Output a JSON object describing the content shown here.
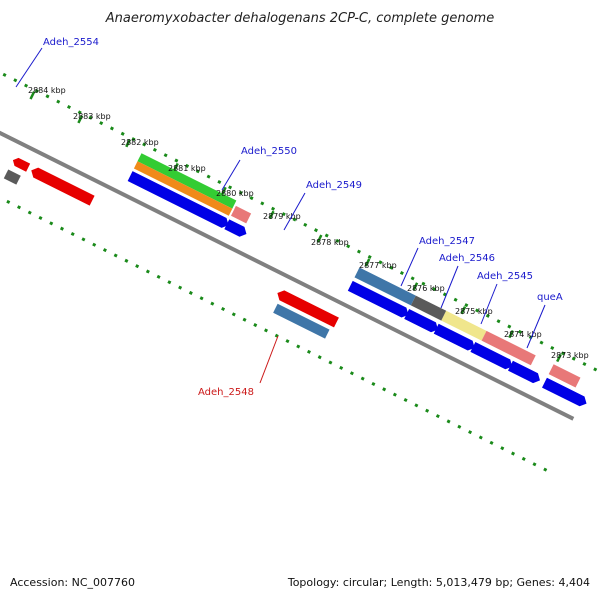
{
  "title": "Anaeromyxobacter dehalogenans 2CP-C, complete genome",
  "footer": {
    "accession": "Accession: NC_007760",
    "topology": "Topology: circular; Length: 5,013,479 bp; Genes: 4,404"
  },
  "colors": {
    "backbone": "#808080",
    "tick": "#1a8a1a",
    "gene_label_forward": "#1a1acc",
    "gene_label_reverse": "#cc1a1a",
    "blue": "#0000e6",
    "red": "#e60000",
    "green": "#33cc33",
    "orange": "#f08a1a",
    "gray": "#5a5a5a",
    "pink": "#e87878",
    "steelblue": "#3f76a8",
    "yellow": "#f0e68c"
  },
  "scale_ticks": [
    "2884 kbp",
    "2883 kbp",
    "2882 kbp",
    "2881 kbp",
    "2880 kbp",
    "2879 kbp",
    "2878 kbp",
    "2877 kbp",
    "2876 kbp",
    "2875 kbp",
    "2874 kbp",
    "2873 kbp"
  ],
  "gene_labels": [
    "Adeh_2554",
    "Adeh_2550",
    "Adeh_2549",
    "Adeh_2547",
    "Adeh_2546",
    "Adeh_2545",
    "queA",
    "Adeh_2548"
  ]
}
